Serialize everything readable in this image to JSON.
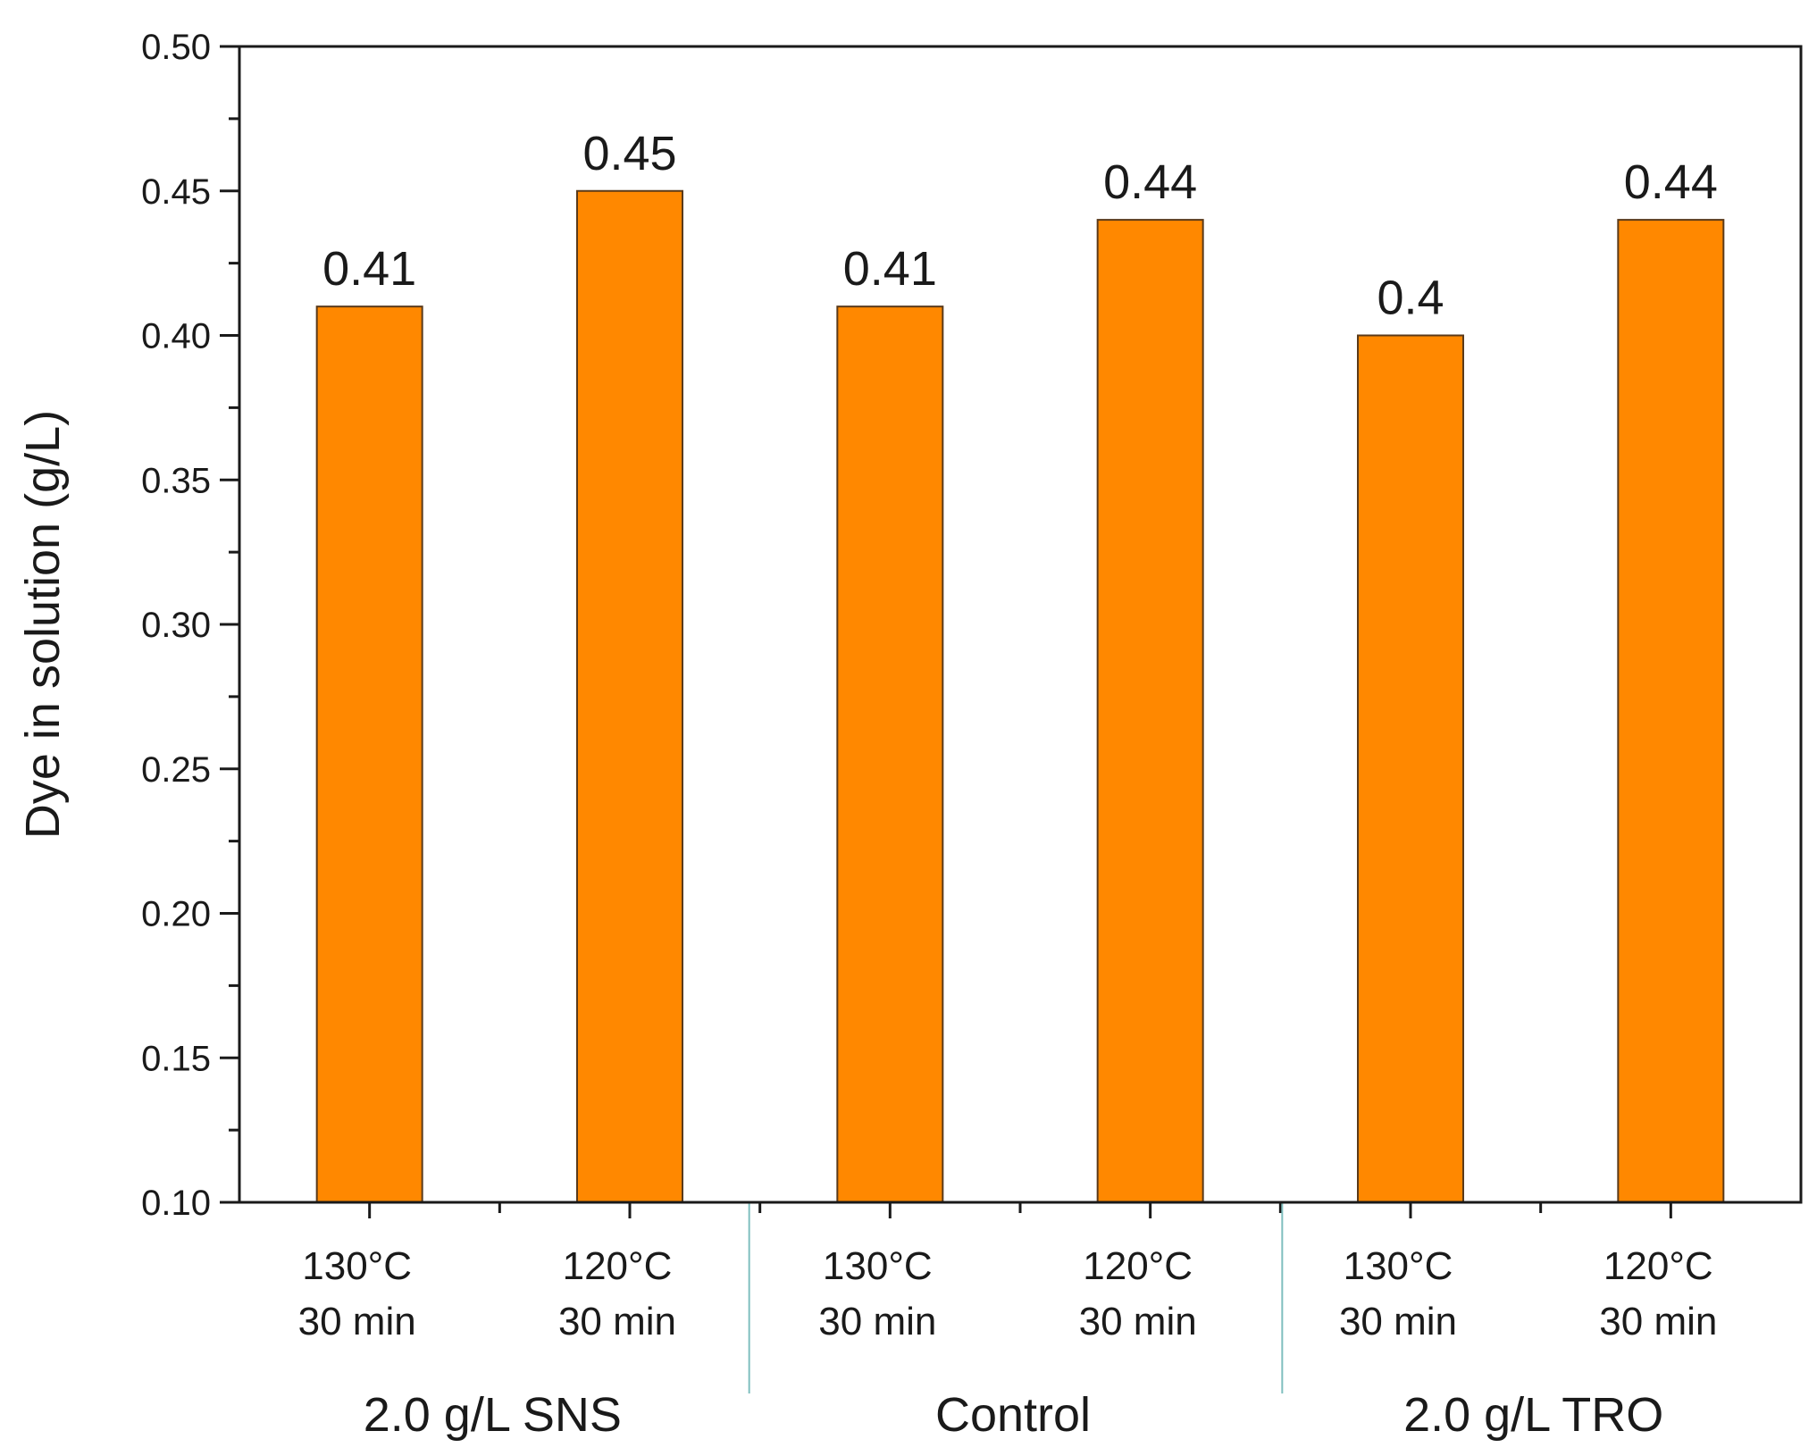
{
  "chart_data": {
    "type": "bar",
    "title": "",
    "xlabel": "",
    "ylabel": "Dye in solution (g/L)",
    "ylim": [
      0.1,
      0.5
    ],
    "yticks": [
      "0.10",
      "0.15",
      "0.20",
      "0.25",
      "0.30",
      "0.35",
      "0.40",
      "0.45",
      "0.50"
    ],
    "grid": false,
    "bar_color": "#FF8800",
    "bar_edge_color": "#5a3a1a",
    "separator_color": "#7fbfbf",
    "groups": [
      {
        "label": "2.0 g/L SNS",
        "categories": [
          {
            "line1": "130°C",
            "line2": "30 min"
          },
          {
            "line1": "120°C",
            "line2": "30 min"
          }
        ]
      },
      {
        "label": "Control",
        "categories": [
          {
            "line1": "130°C",
            "line2": "30 min"
          },
          {
            "line1": "120°C",
            "line2": "30 min"
          }
        ]
      },
      {
        "label": "2.0 g/L TRO",
        "categories": [
          {
            "line1": "130°C",
            "line2": "30 min"
          },
          {
            "line1": "120°C",
            "line2": "30 min"
          }
        ]
      }
    ],
    "values": [
      0.41,
      0.45,
      0.41,
      0.44,
      0.4,
      0.44
    ],
    "data_labels": [
      "0.41",
      "0.45",
      "0.41",
      "0.44",
      "0.4",
      "0.44"
    ]
  }
}
